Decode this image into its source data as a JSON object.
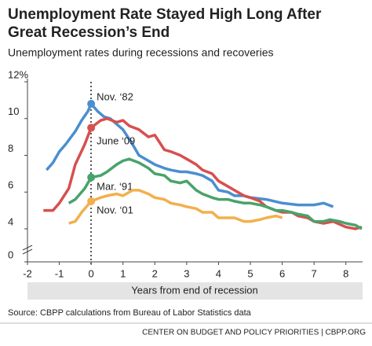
{
  "chart_data": {
    "type": "line",
    "title": "Unemployment Rate Stayed High Long After",
    "title_line2": "Great Recession’s End",
    "subtitle": "Unemployment rates during recessions and recoveries",
    "x_label": "Years from end of recession",
    "source": "Source: CBPP calculations from Bureau of Labor Statistics data",
    "footer": "CENTER ON BUDGET AND POLICY PRIORITIES | CBPP.ORG",
    "xlim": [
      -2,
      8.5
    ],
    "xticks": [
      -2,
      -1,
      0,
      1,
      2,
      3,
      4,
      5,
      6,
      7,
      8
    ],
    "ylim": [
      0,
      12
    ],
    "axis_break": [
      0,
      4
    ],
    "yticks": [
      {
        "value": 12,
        "label": "12%"
      },
      10,
      8,
      6,
      4,
      0
    ],
    "series": [
      {
        "name": "Nov. ‘82",
        "color": "#4a8fd0",
        "x": [
          -1.4,
          -1.2,
          -1,
          -0.8,
          -0.5,
          -0.3,
          -0.1,
          0,
          0.2,
          0.4,
          0.6,
          0.8,
          1.0,
          1.3,
          1.5,
          1.8,
          2,
          2.3,
          2.5,
          2.8,
          3,
          3.3,
          3.5,
          3.8,
          4,
          4.3,
          4.5,
          4.8,
          5,
          5.5,
          6,
          6.5,
          7,
          7.3,
          7.6
        ],
        "values": [
          7.2,
          7.6,
          8.2,
          8.6,
          9.3,
          9.9,
          10.4,
          10.8,
          10.4,
          10.1,
          10.0,
          9.7,
          9.4,
          8.6,
          8.0,
          7.7,
          7.5,
          7.3,
          7.2,
          7.1,
          7.1,
          7.0,
          6.9,
          6.6,
          6.1,
          6.0,
          5.8,
          5.8,
          5.7,
          5.6,
          5.4,
          5.3,
          5.3,
          5.4,
          5.2
        ]
      },
      {
        "name": "June ‘09",
        "color": "#d6504f",
        "x": [
          -1.5,
          -1.2,
          -1,
          -0.7,
          -0.5,
          -0.2,
          0,
          0.3,
          0.5,
          0.8,
          1,
          1.2,
          1.5,
          1.8,
          2,
          2.3,
          2.5,
          2.8,
          3,
          3.3,
          3.5,
          3.8,
          4,
          4.3,
          4.5,
          4.8,
          5,
          5.3,
          5.5,
          5.8,
          6,
          6.3,
          6.5,
          6.8,
          7,
          7.3,
          7.6,
          8,
          8.3,
          8.5
        ],
        "values": [
          5.0,
          5.0,
          5.4,
          6.2,
          7.5,
          8.6,
          9.5,
          9.9,
          10.0,
          9.8,
          9.9,
          9.6,
          9.4,
          9.0,
          9.1,
          8.3,
          8.2,
          8.0,
          7.8,
          7.5,
          7.2,
          7.0,
          6.6,
          6.3,
          6.1,
          5.8,
          5.7,
          5.5,
          5.2,
          5.0,
          4.9,
          4.9,
          4.7,
          4.6,
          4.4,
          4.3,
          4.4,
          4.1,
          4.0,
          4.1
        ]
      },
      {
        "name": "Mar. ‘91",
        "color": "#48a36a",
        "x": [
          -0.7,
          -0.5,
          -0.2,
          0,
          0.3,
          0.5,
          0.8,
          1,
          1.2,
          1.5,
          1.8,
          2,
          2.3,
          2.5,
          2.8,
          3,
          3.3,
          3.5,
          3.8,
          4,
          4.3,
          4.5,
          4.8,
          5,
          5.3,
          5.5,
          5.8,
          6,
          6.3,
          6.5,
          6.8,
          7,
          7.3,
          7.5,
          7.8,
          8,
          8.3,
          8.5
        ],
        "values": [
          5.4,
          5.6,
          6.2,
          6.8,
          6.9,
          7.1,
          7.5,
          7.7,
          7.8,
          7.6,
          7.3,
          7.0,
          6.9,
          6.6,
          6.5,
          6.6,
          6.1,
          5.9,
          5.7,
          5.6,
          5.6,
          5.5,
          5.4,
          5.4,
          5.3,
          5.2,
          5.0,
          5.0,
          4.9,
          4.8,
          4.7,
          4.4,
          4.4,
          4.5,
          4.4,
          4.3,
          4.2,
          4.0
        ]
      },
      {
        "name": "Nov. ‘01",
        "color": "#f2b04c",
        "x": [
          -0.7,
          -0.5,
          -0.3,
          0,
          0.3,
          0.5,
          0.8,
          1,
          1.3,
          1.5,
          1.8,
          2,
          2.3,
          2.5,
          2.8,
          3,
          3.3,
          3.5,
          3.8,
          4,
          4.3,
          4.5,
          4.8,
          5,
          5.3,
          5.5,
          5.8,
          6
        ],
        "values": [
          4.3,
          4.4,
          4.9,
          5.5,
          5.7,
          5.8,
          5.9,
          5.8,
          6.1,
          6.1,
          5.9,
          5.7,
          5.6,
          5.4,
          5.3,
          5.2,
          5.1,
          4.9,
          4.9,
          4.6,
          4.6,
          4.6,
          4.4,
          4.4,
          4.5,
          4.6,
          4.7,
          4.6
        ]
      }
    ]
  }
}
